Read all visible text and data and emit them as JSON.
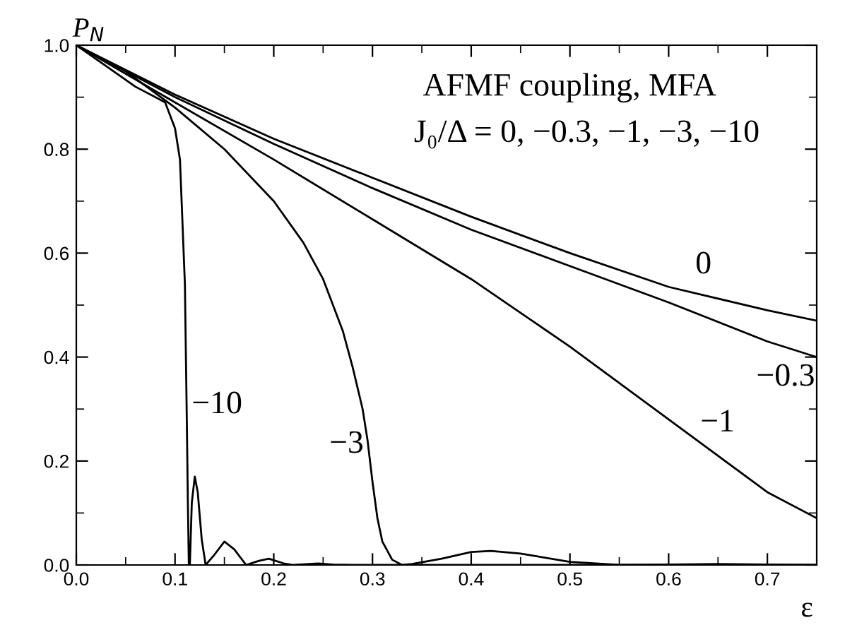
{
  "chart_data": {
    "type": "line",
    "xlabel": "ε",
    "ylabel": "P$_{N}$",
    "xlim": [
      0,
      0.75
    ],
    "ylim": [
      0,
      1.0
    ],
    "xticks": [
      {
        "value": 0,
        "label": "0.0"
      },
      0.1,
      0.2,
      0.3,
      0.4,
      0.5,
      0.6,
      0.7
    ],
    "yticks": [
      {
        "value": 0,
        "label": "0.0"
      },
      0.2,
      0.4,
      0.6,
      0.8,
      {
        "value": 1,
        "label": "1.0"
      }
    ],
    "grid": false,
    "legend": false,
    "marker": "none",
    "line_style": "solid",
    "annotations": [
      "AFMF coupling, MFA",
      "J₀/Δ = 0, −0.3, −1, −3, −10",
      "0",
      "−0.3",
      "−1",
      "−3",
      "−10"
    ],
    "series": [
      {
        "color": "#000000",
        "x": [
          0,
          0.1,
          0.2,
          0.3,
          0.4,
          0.5,
          0.6,
          0.7,
          0.75
        ],
        "values": [
          1,
          0.905,
          0.82,
          0.745,
          0.67,
          0.6,
          0.535,
          0.49,
          0.47
        ]
      },
      {
        "color": "#000000",
        "x": [
          0,
          0.1,
          0.2,
          0.3,
          0.4,
          0.5,
          0.6,
          0.7,
          0.75
        ],
        "values": [
          1,
          0.9,
          0.81,
          0.725,
          0.645,
          0.575,
          0.505,
          0.43,
          0.4
        ]
      },
      {
        "color": "#000000",
        "x": [
          0,
          0.1,
          0.2,
          0.3,
          0.4,
          0.5,
          0.6,
          0.65,
          0.7,
          0.75
        ],
        "values": [
          1,
          0.89,
          0.78,
          0.665,
          0.55,
          0.42,
          0.28,
          0.21,
          0.14,
          0.09
        ]
      },
      {
        "color": "#000000",
        "x": [
          0,
          0.05,
          0.1,
          0.15,
          0.2,
          0.23,
          0.25,
          0.27,
          0.28,
          0.29,
          0.295,
          0.3,
          0.305,
          0.31,
          0.32,
          0.33,
          0.34,
          0.37,
          0.4,
          0.42,
          0.45,
          0.5,
          0.55,
          0.6,
          0.65,
          0.7,
          0.75
        ],
        "values": [
          1,
          0.95,
          0.88,
          0.8,
          0.7,
          0.62,
          0.55,
          0.45,
          0.38,
          0.3,
          0.24,
          0.16,
          0.09,
          0.045,
          0.01,
          0,
          0.002,
          0.012,
          0.025,
          0.027,
          0.022,
          0.006,
          0,
          0.001,
          0.002,
          0.001,
          0
        ]
      },
      {
        "color": "#000000",
        "x": [
          0,
          0.03,
          0.06,
          0.08,
          0.09,
          0.1,
          0.105,
          0.11,
          0.112,
          0.113,
          0.114,
          0.115,
          0.117,
          0.12,
          0.123,
          0.127,
          0.131,
          0.14,
          0.15,
          0.16,
          0.172,
          0.185,
          0.195,
          0.21,
          0.22,
          0.245,
          0.26,
          0.28,
          0.75
        ],
        "values": [
          1,
          0.96,
          0.92,
          0.9,
          0.89,
          0.84,
          0.78,
          0.54,
          0.27,
          0.12,
          0,
          0,
          0.12,
          0.17,
          0.14,
          0.05,
          0,
          0.02,
          0.045,
          0.03,
          0,
          0.008,
          0.012,
          0.003,
          0,
          0.003,
          0.001,
          0,
          0
        ]
      }
    ]
  }
}
